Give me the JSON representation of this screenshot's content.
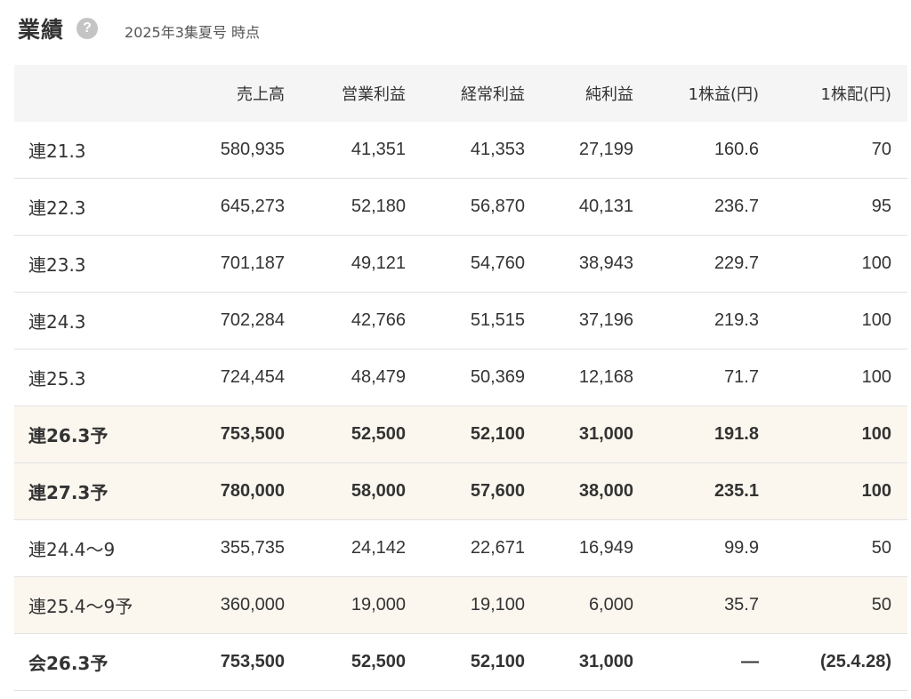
{
  "header": {
    "title": "業績",
    "help_icon": "?",
    "subtitle": "2025年3集夏号 時点"
  },
  "table": {
    "columns": [
      "",
      "売上高",
      "営業利益",
      "経常利益",
      "純利益",
      "1株益(円)",
      "1株配(円)"
    ],
    "rows": [
      {
        "period": "連21.3",
        "sales": "580,935",
        "operating_profit": "41,351",
        "ordinary_profit": "41,353",
        "net_profit": "27,199",
        "eps": "160.6",
        "dps": "70"
      },
      {
        "period": "連22.3",
        "sales": "645,273",
        "operating_profit": "52,180",
        "ordinary_profit": "56,870",
        "net_profit": "40,131",
        "eps": "236.7",
        "dps": "95"
      },
      {
        "period": "連23.3",
        "sales": "701,187",
        "operating_profit": "49,121",
        "ordinary_profit": "54,760",
        "net_profit": "38,943",
        "eps": "229.7",
        "dps": "100"
      },
      {
        "period": "連24.3",
        "sales": "702,284",
        "operating_profit": "42,766",
        "ordinary_profit": "51,515",
        "net_profit": "37,196",
        "eps": "219.3",
        "dps": "100"
      },
      {
        "period": "連25.3",
        "sales": "724,454",
        "operating_profit": "48,479",
        "ordinary_profit": "50,369",
        "net_profit": "12,168",
        "eps": "71.7",
        "dps": "100"
      },
      {
        "period": "連26.3予",
        "sales": "753,500",
        "operating_profit": "52,500",
        "ordinary_profit": "52,100",
        "net_profit": "31,000",
        "eps": "191.8",
        "dps": "100"
      },
      {
        "period": "連27.3予",
        "sales": "780,000",
        "operating_profit": "58,000",
        "ordinary_profit": "57,600",
        "net_profit": "38,000",
        "eps": "235.1",
        "dps": "100"
      },
      {
        "period": "連24.4〜9",
        "sales": "355,735",
        "operating_profit": "24,142",
        "ordinary_profit": "22,671",
        "net_profit": "16,949",
        "eps": "99.9",
        "dps": "50"
      },
      {
        "period": "連25.4〜9予",
        "sales": "360,000",
        "operating_profit": "19,000",
        "ordinary_profit": "19,100",
        "net_profit": "6,000",
        "eps": "35.7",
        "dps": "50"
      },
      {
        "period": "会26.3予",
        "sales": "753,500",
        "operating_profit": "52,500",
        "ordinary_profit": "52,100",
        "net_profit": "31,000",
        "eps": "—",
        "dps": "(25.4.28)"
      }
    ]
  }
}
